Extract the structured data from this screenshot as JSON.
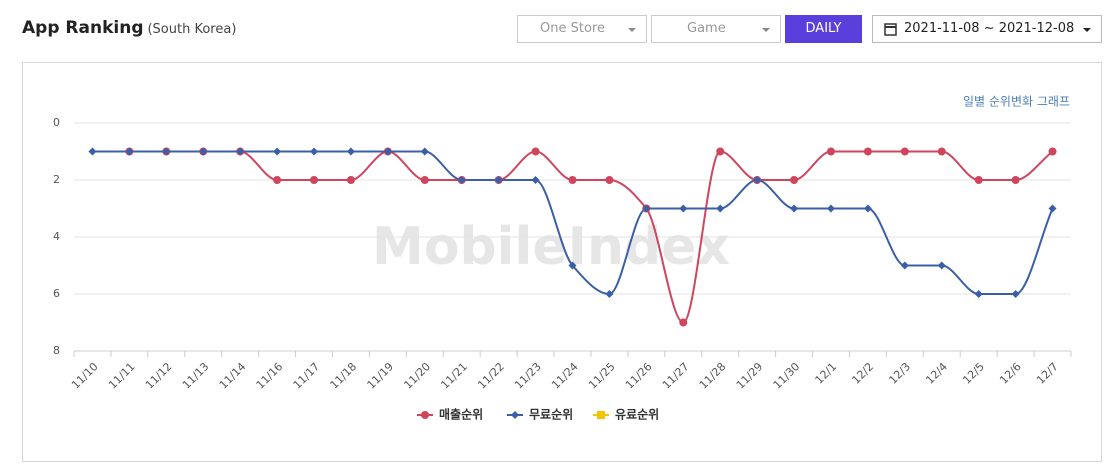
{
  "header": {
    "title": "App Ranking",
    "subtitle": "(South Korea)",
    "store": "One Store",
    "category": "Game",
    "period": "DAILY",
    "date_range": "2021-11-08 ~ 2021-12-08"
  },
  "chart_data": {
    "type": "line",
    "annotation": "일별 순위변화 그래프",
    "watermark": "MobileIndex",
    "categories": [
      "11/10",
      "11/11",
      "11/12",
      "11/13",
      "11/14",
      "11/16",
      "11/17",
      "11/18",
      "11/19",
      "11/20",
      "11/21",
      "11/22",
      "11/23",
      "11/24",
      "11/25",
      "11/26",
      "11/27",
      "11/28",
      "11/29",
      "11/30",
      "12/1",
      "12/2",
      "12/3",
      "12/4",
      "12/5",
      "12/6",
      "12/7"
    ],
    "series": [
      {
        "name": "매출순위",
        "color": "#d0455e",
        "marker": "circle",
        "values": [
          null,
          1,
          1,
          1,
          1,
          2,
          2,
          2,
          1,
          2,
          2,
          2,
          1,
          2,
          2,
          3,
          7,
          1,
          2,
          2,
          1,
          1,
          1,
          1,
          2,
          2,
          1
        ]
      },
      {
        "name": "무료순위",
        "color": "#3b5fa6",
        "marker": "diamond",
        "values": [
          1,
          1,
          1,
          1,
          1,
          1,
          1,
          1,
          1,
          1,
          2,
          2,
          2,
          5,
          6,
          3,
          3,
          3,
          2,
          3,
          3,
          3,
          5,
          5,
          6,
          6,
          3
        ]
      },
      {
        "name": "유료순위",
        "color": "#f5c400",
        "marker": "square",
        "values": [
          null,
          null,
          null,
          null,
          null,
          null,
          null,
          null,
          null,
          null,
          null,
          null,
          null,
          null,
          null,
          null,
          null,
          null,
          null,
          null,
          null,
          null,
          null,
          null,
          null,
          null,
          null
        ]
      }
    ],
    "ylim": [
      0,
      8
    ],
    "yticks": [
      0,
      2,
      4,
      6,
      8
    ],
    "y_inverted": true,
    "grid": true
  }
}
